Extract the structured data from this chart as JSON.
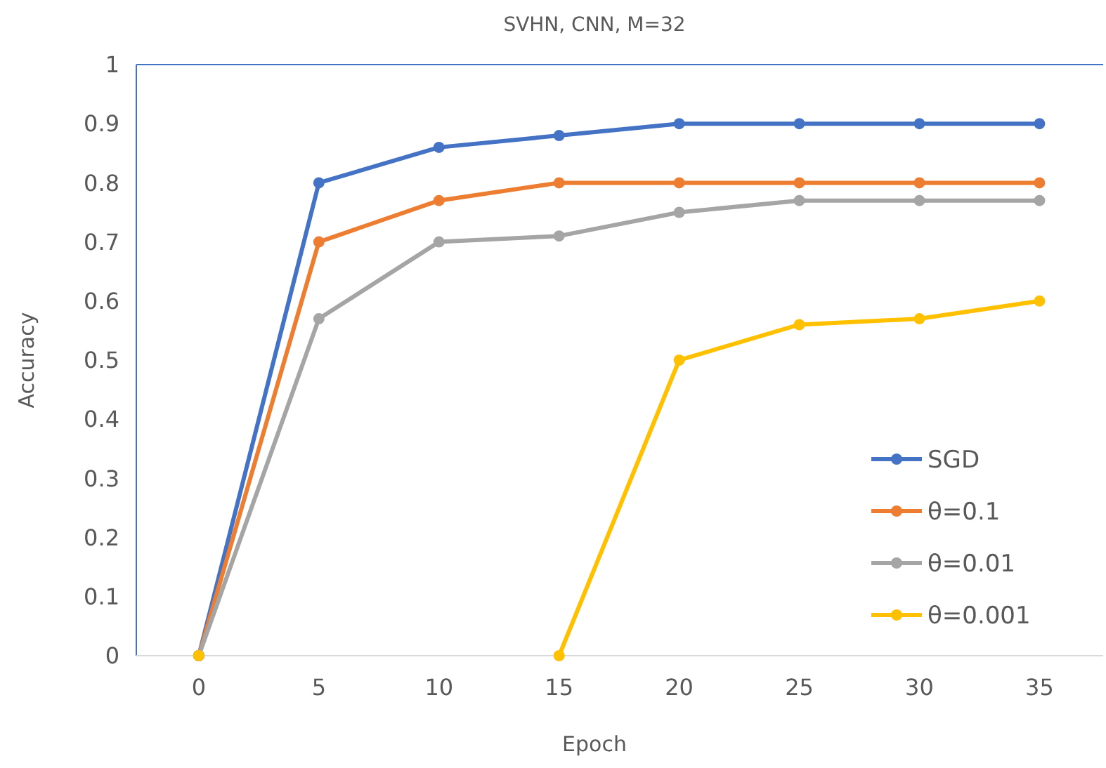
{
  "chart_data": {
    "type": "line",
    "title": "SVHN, CNN, M=32",
    "xlabel": "Epoch",
    "ylabel": "Accuracy",
    "categories": [
      "0",
      "5",
      "10",
      "15",
      "20",
      "25",
      "30",
      "35"
    ],
    "series": [
      {
        "name": "SGD",
        "color": "#4472c4",
        "values": [
          0,
          0.8,
          0.86,
          0.88,
          0.9,
          0.9,
          0.9,
          0.9
        ]
      },
      {
        "name": "θ=0.1",
        "color": "#ed7d31",
        "values": [
          0,
          0.7,
          0.77,
          0.8,
          0.8,
          0.8,
          0.8,
          0.8
        ]
      },
      {
        "name": "θ=0.01",
        "color": "#a5a5a5",
        "values": [
          0,
          0.57,
          0.7,
          0.71,
          0.75,
          0.77,
          0.77,
          0.77
        ]
      },
      {
        "name": "θ=0.001",
        "color": "#ffc000",
        "values": [
          0,
          null,
          null,
          0,
          0.5,
          0.56,
          0.57,
          0.6
        ]
      }
    ],
    "ylim": [
      0,
      1
    ],
    "yticks": [
      0,
      0.1,
      0.2,
      0.3,
      0.4,
      0.5,
      0.6,
      0.7,
      0.8,
      0.9,
      1
    ],
    "grid": false,
    "legend": "bottom right",
    "marker": "circle",
    "line_style": "solid"
  }
}
